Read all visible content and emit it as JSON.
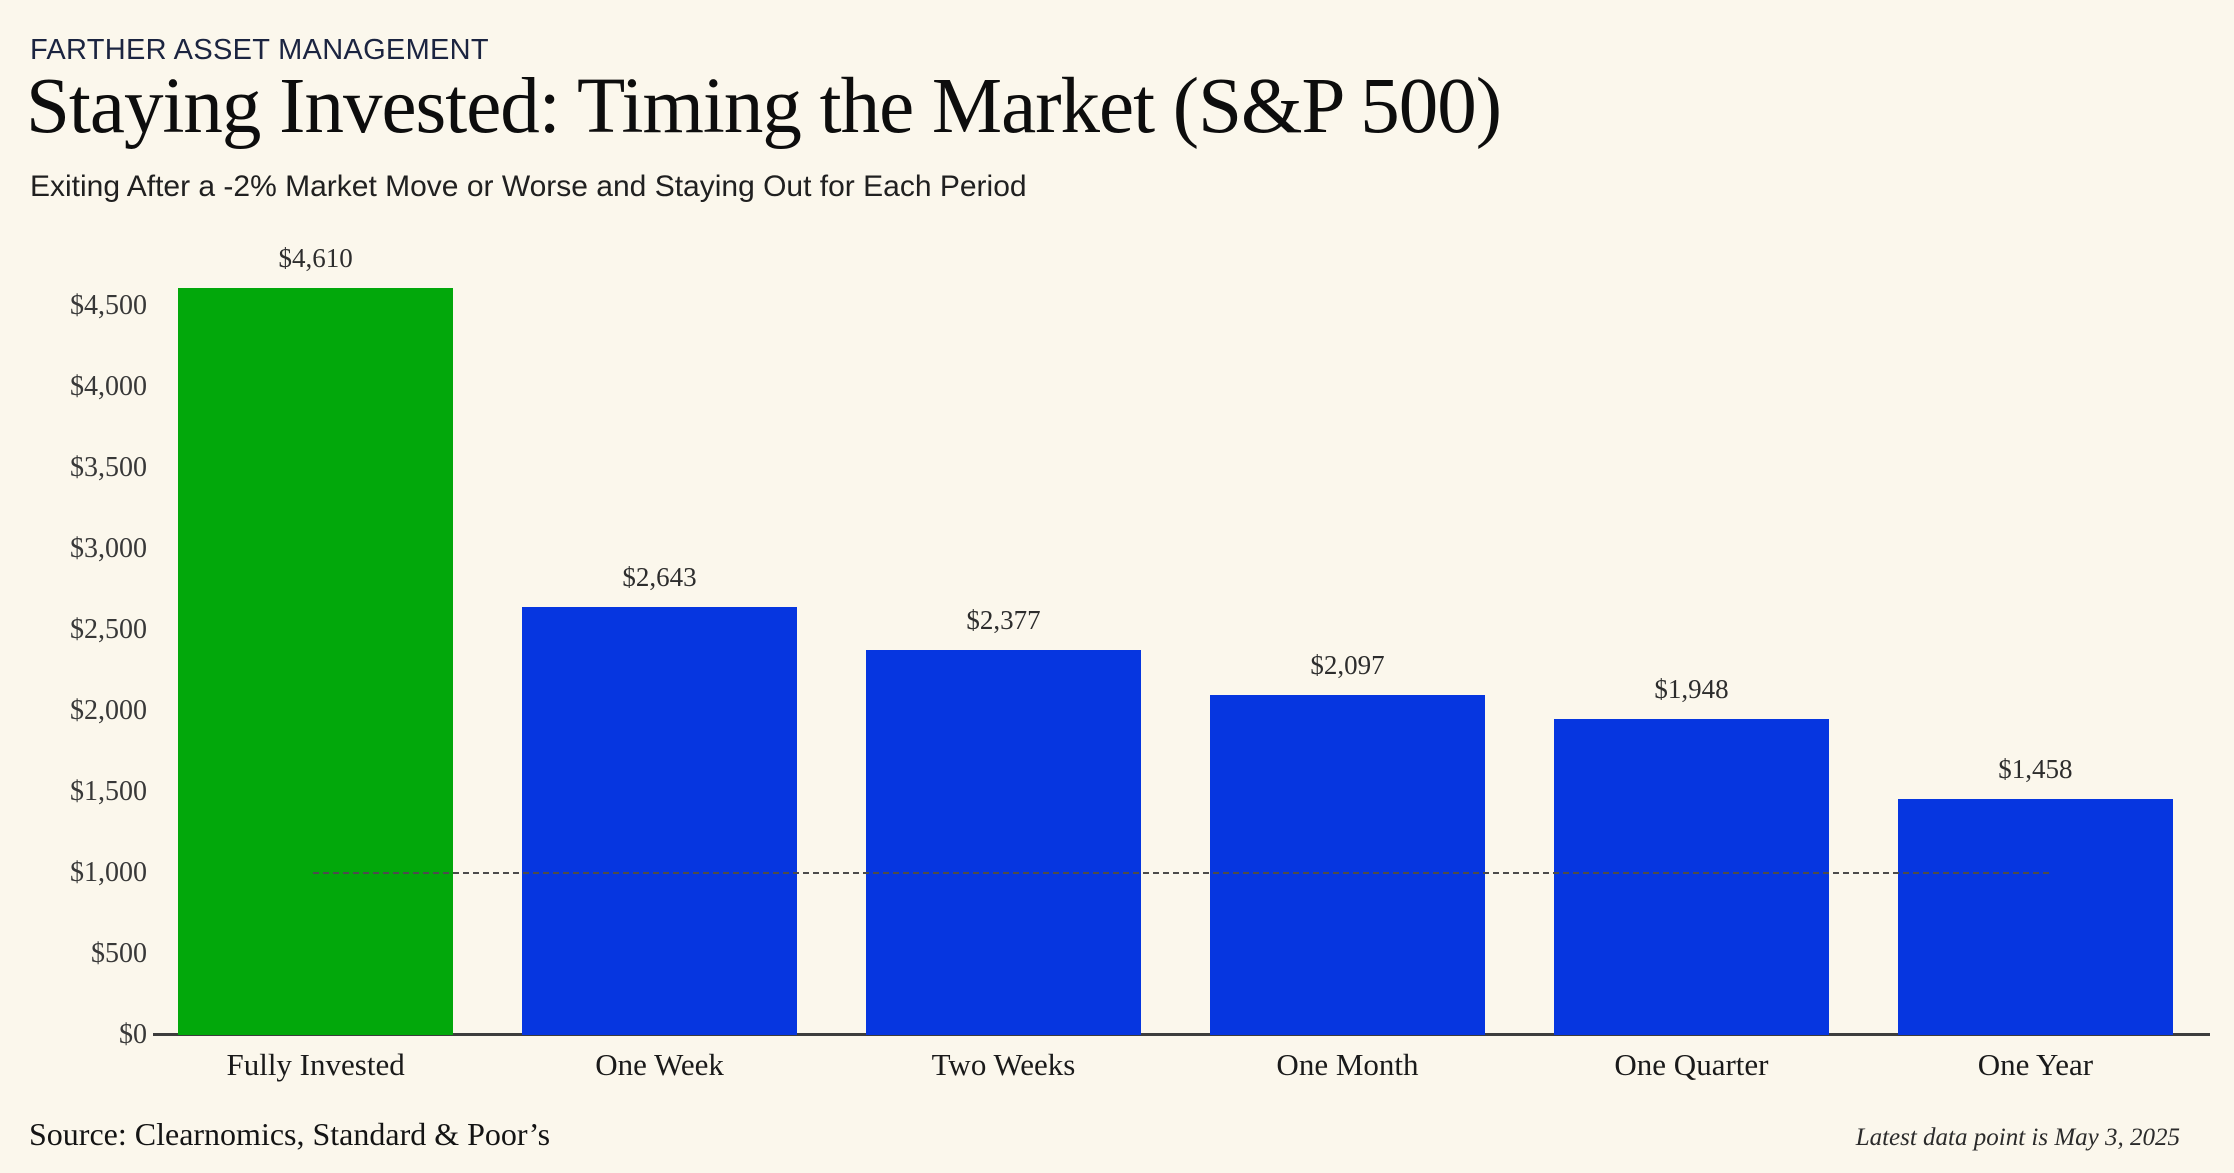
{
  "header": {
    "eyebrow": "FARTHER ASSET MANAGEMENT",
    "title": "Staying Invested: Timing the Market (S&P 500)",
    "subtitle": "Exiting After a -2% Market Move or Worse and Staying Out for Each Period"
  },
  "chart_data": {
    "type": "bar",
    "title": "Staying Invested: Timing the Market (S&P 500)",
    "xlabel": "",
    "ylabel": "",
    "categories": [
      "Fully Invested",
      "One Week",
      "Two Weeks",
      "One Month",
      "One Quarter",
      "One Year"
    ],
    "values": [
      4610,
      2643,
      2377,
      2097,
      1948,
      1458
    ],
    "value_labels": [
      "$4,610",
      "$2,643",
      "$2,377",
      "$2,097",
      "$1,948",
      "$1,458"
    ],
    "bar_colors": [
      "#02A80B",
      "#0636E0",
      "#0636E0",
      "#0636E0",
      "#0636E0",
      "#0636E0"
    ],
    "y_tick_values": [
      0,
      500,
      1000,
      1500,
      2000,
      2500,
      3000,
      3500,
      4000,
      4500
    ],
    "y_tick_labels": [
      "$0",
      "$500",
      "$1,000",
      "$1,500",
      "$2,000",
      "$2,500",
      "$3,000",
      "$3,500",
      "$4,000",
      "$4,500"
    ],
    "ylim": [
      0,
      4750
    ],
    "reference_line_value": 1000,
    "grid": "off",
    "legend": "none"
  },
  "footer": {
    "source": "Source: Clearnomics, Standard & Poor’s",
    "note": "Latest data point is May 3, 2025"
  },
  "colors": {
    "background": "#FBF7EC",
    "green_bar": "#02A80B",
    "blue_bar": "#0636E0",
    "eyebrow_navy": "#1B2440",
    "axis_line": "#3D3D3D",
    "reference_line": "#4C4C4C"
  }
}
